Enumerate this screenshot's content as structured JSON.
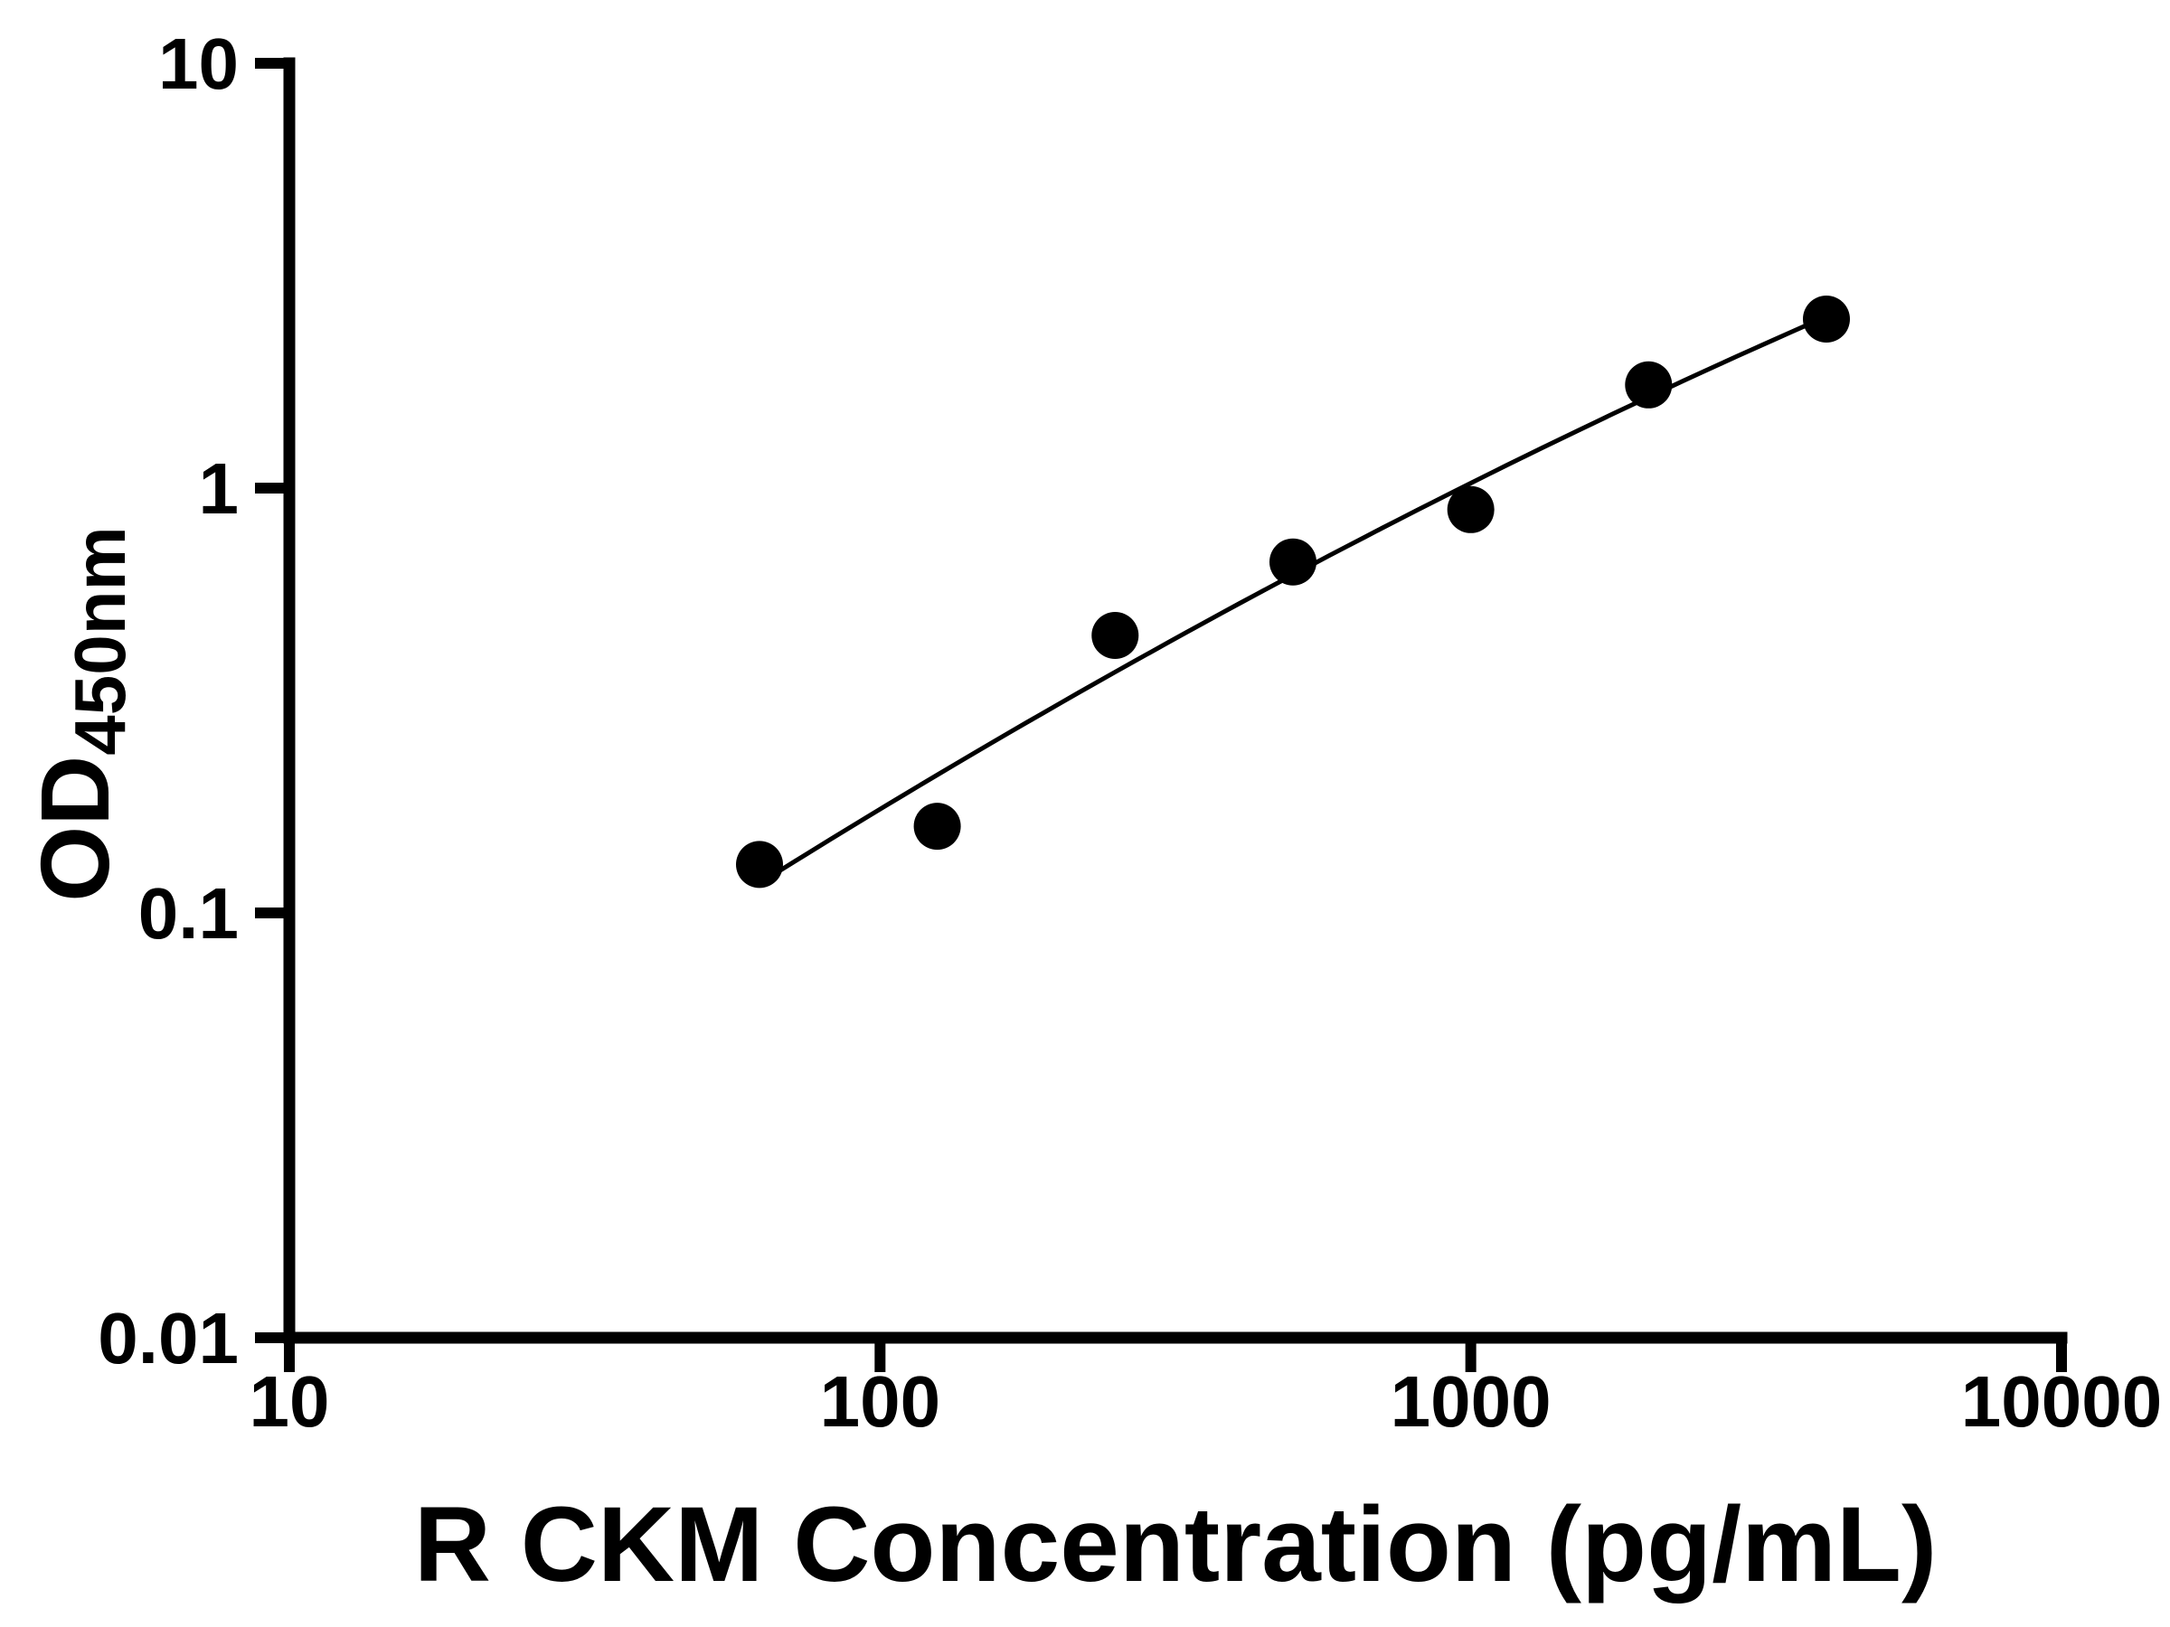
{
  "chart_data": {
    "type": "scatter",
    "title": "",
    "xlabel": "R CKM Concentration (pg/mL)",
    "ylabel_main": "OD",
    "ylabel_sub": "450nm",
    "xscale": "log10",
    "yscale": "log10",
    "xlim": [
      10,
      10000
    ],
    "ylim": [
      0.01,
      10
    ],
    "x_ticks": [
      10,
      100,
      1000,
      10000
    ],
    "x_tick_labels": [
      "10",
      "100",
      "1000",
      "10000"
    ],
    "y_ticks": [
      0.01,
      0.1,
      1,
      10
    ],
    "y_tick_labels": [
      "0.01",
      "0.1",
      "1",
      "10"
    ],
    "points": [
      {
        "x": 62.5,
        "y": 0.13
      },
      {
        "x": 125,
        "y": 0.16
      },
      {
        "x": 250,
        "y": 0.45
      },
      {
        "x": 500,
        "y": 0.67
      },
      {
        "x": 1000,
        "y": 0.89
      },
      {
        "x": 2000,
        "y": 1.75
      },
      {
        "x": 4000,
        "y": 2.5
      }
    ],
    "fit_line": "smooth standard-curve fit drawn through the points from 62.5 to 4000 pg/mL",
    "marker_color": "#000000",
    "line_color": "#000000",
    "axis_color": "#000000",
    "background": "#ffffff",
    "grid": false,
    "legend": false
  }
}
